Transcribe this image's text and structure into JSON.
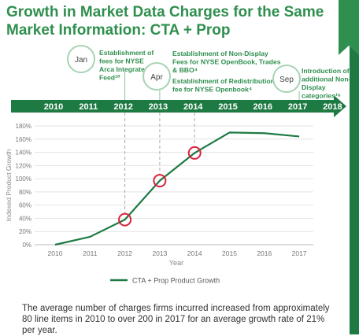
{
  "title": "Growth in Market Data Charges for the Same\nMarket Information: CTA + Prop",
  "footer": "The average number of charges firms incurred increased from approximately 80 line items in 2010 to over 200 in 2017 for an average growth rate of 21% per year.",
  "colors": {
    "accent": "#2f8f4e",
    "dark_green": "#1e7a43",
    "marker": "#d9223c"
  },
  "timeline": {
    "years": [
      "2010",
      "2011",
      "2012",
      "2013",
      "2014",
      "2015",
      "2016",
      "2017",
      "2018"
    ],
    "events": [
      {
        "month": "Jan",
        "year": "2012",
        "text": [
          "Establishment of",
          "fees for NYSE",
          "Arca Integrated",
          "Feed¹⁰"
        ]
      },
      {
        "month": "Apr",
        "year": "2013",
        "text": [
          "Establishment of Non-Display",
          "Fees for NYSE OpenBook, Trades",
          "& BBO⁴"
        ]
      },
      {
        "month": "",
        "year": "2014",
        "text": [
          "Establishment of Redistribution",
          "fee for NYSE Openbook⁴"
        ]
      },
      {
        "month": "Sep",
        "year": "2017",
        "text": [
          "Introduction of",
          "additional Non-",
          "Display",
          "categories¹⁶"
        ]
      }
    ]
  },
  "chart_data": {
    "type": "line",
    "x": [
      "2010",
      "2011",
      "2012",
      "2013",
      "2014",
      "2015",
      "2016",
      "2017"
    ],
    "series": [
      {
        "name": "CTA + Prop Product Growth",
        "values": [
          0,
          12,
          38,
          97,
          139,
          170,
          169,
          164
        ]
      }
    ],
    "highlighted": [
      "2012",
      "2013",
      "2014"
    ],
    "xlabel": "Year",
    "ylabel": "Indexed Product Growth",
    "ylim": [
      0,
      180
    ],
    "yticks": [
      0,
      20,
      40,
      60,
      80,
      100,
      120,
      140,
      160,
      180
    ],
    "ytick_labels": [
      "0%",
      "20%",
      "40%",
      "60%",
      "80%",
      "100%",
      "120%",
      "140%",
      "160%",
      "180%"
    ],
    "grid": true,
    "legend": "bottom-center"
  }
}
